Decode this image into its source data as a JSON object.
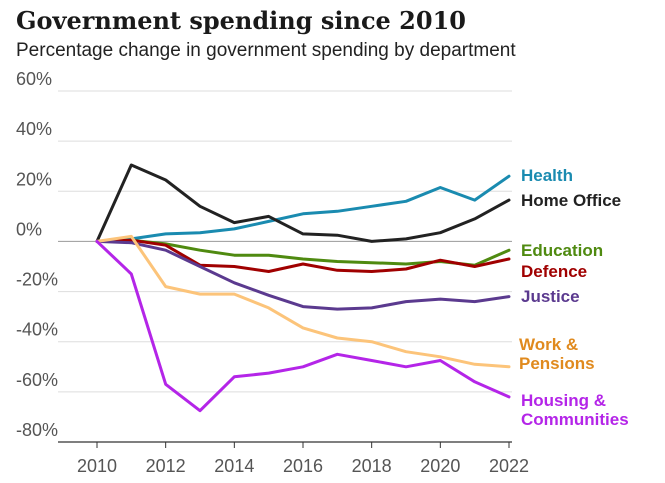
{
  "chart_data": {
    "type": "line",
    "title": "Government spending since 2010",
    "subtitle": "Percentage change in government spending by department",
    "xlabel": "",
    "ylabel": "",
    "x": [
      2010,
      2011,
      2012,
      2013,
      2014,
      2015,
      2016,
      2017,
      2018,
      2019,
      2020,
      2021,
      2022
    ],
    "xlim": [
      2010,
      2022
    ],
    "ylim": [
      -80,
      60
    ],
    "xticks": [
      2010,
      2012,
      2014,
      2016,
      2018,
      2020,
      2022
    ],
    "yticks": [
      60,
      40,
      20,
      0,
      -20,
      -40,
      -60,
      -80
    ],
    "ytick_labels": [
      "60%",
      "40%",
      "20%",
      "0%",
      "-20%",
      "-40%",
      "-60%",
      "-80%"
    ],
    "grid": "horizontal",
    "legend": "direct labels at right",
    "series": [
      {
        "name": "Health",
        "color": "#1a8bb0",
        "values": [
          0,
          1,
          3,
          3.5,
          5,
          8,
          11,
          12,
          14,
          16,
          21.5,
          16.5,
          26
        ]
      },
      {
        "name": "Home Office",
        "color": "#222222",
        "values": [
          0,
          30.5,
          24.5,
          14,
          7.5,
          10,
          3,
          2.5,
          0,
          1,
          3.5,
          9,
          16.5
        ]
      },
      {
        "name": "Education",
        "color": "#4f8a10",
        "values": [
          0,
          0.5,
          -1,
          -3.5,
          -5.5,
          -5.5,
          -7,
          -8,
          -8.5,
          -9,
          -8,
          -9.5,
          -3.5
        ]
      },
      {
        "name": "Defence",
        "color": "#a00000",
        "values": [
          0,
          0.5,
          -1.5,
          -9.5,
          -10,
          -12,
          -9,
          -11.5,
          -12,
          -11,
          -7.5,
          -10,
          -7
        ]
      },
      {
        "name": "Justice",
        "color": "#5b3a8f",
        "values": [
          0,
          -0.5,
          -3.5,
          -10,
          -16.5,
          -21.5,
          -26,
          -27,
          -26.5,
          -24,
          -23,
          -24,
          -22
        ]
      },
      {
        "name": "Work & Pensions",
        "color": "#fcc47a",
        "label_color": "#e08a1e",
        "label_lines": [
          "Work &",
          "Pensions"
        ],
        "values": [
          0,
          2,
          -18,
          -21,
          -21,
          -26.5,
          -34.5,
          -38.5,
          -40,
          -44,
          -46,
          -49,
          -50
        ]
      },
      {
        "name": "Housing & Communities",
        "color": "#b425e8",
        "label_lines": [
          "Housing &",
          "Communities"
        ],
        "values": [
          0,
          -13,
          -57,
          -67.5,
          -54,
          -52.5,
          -50,
          -45,
          -47.5,
          -50,
          -47.5,
          -56,
          -62
        ]
      }
    ]
  }
}
